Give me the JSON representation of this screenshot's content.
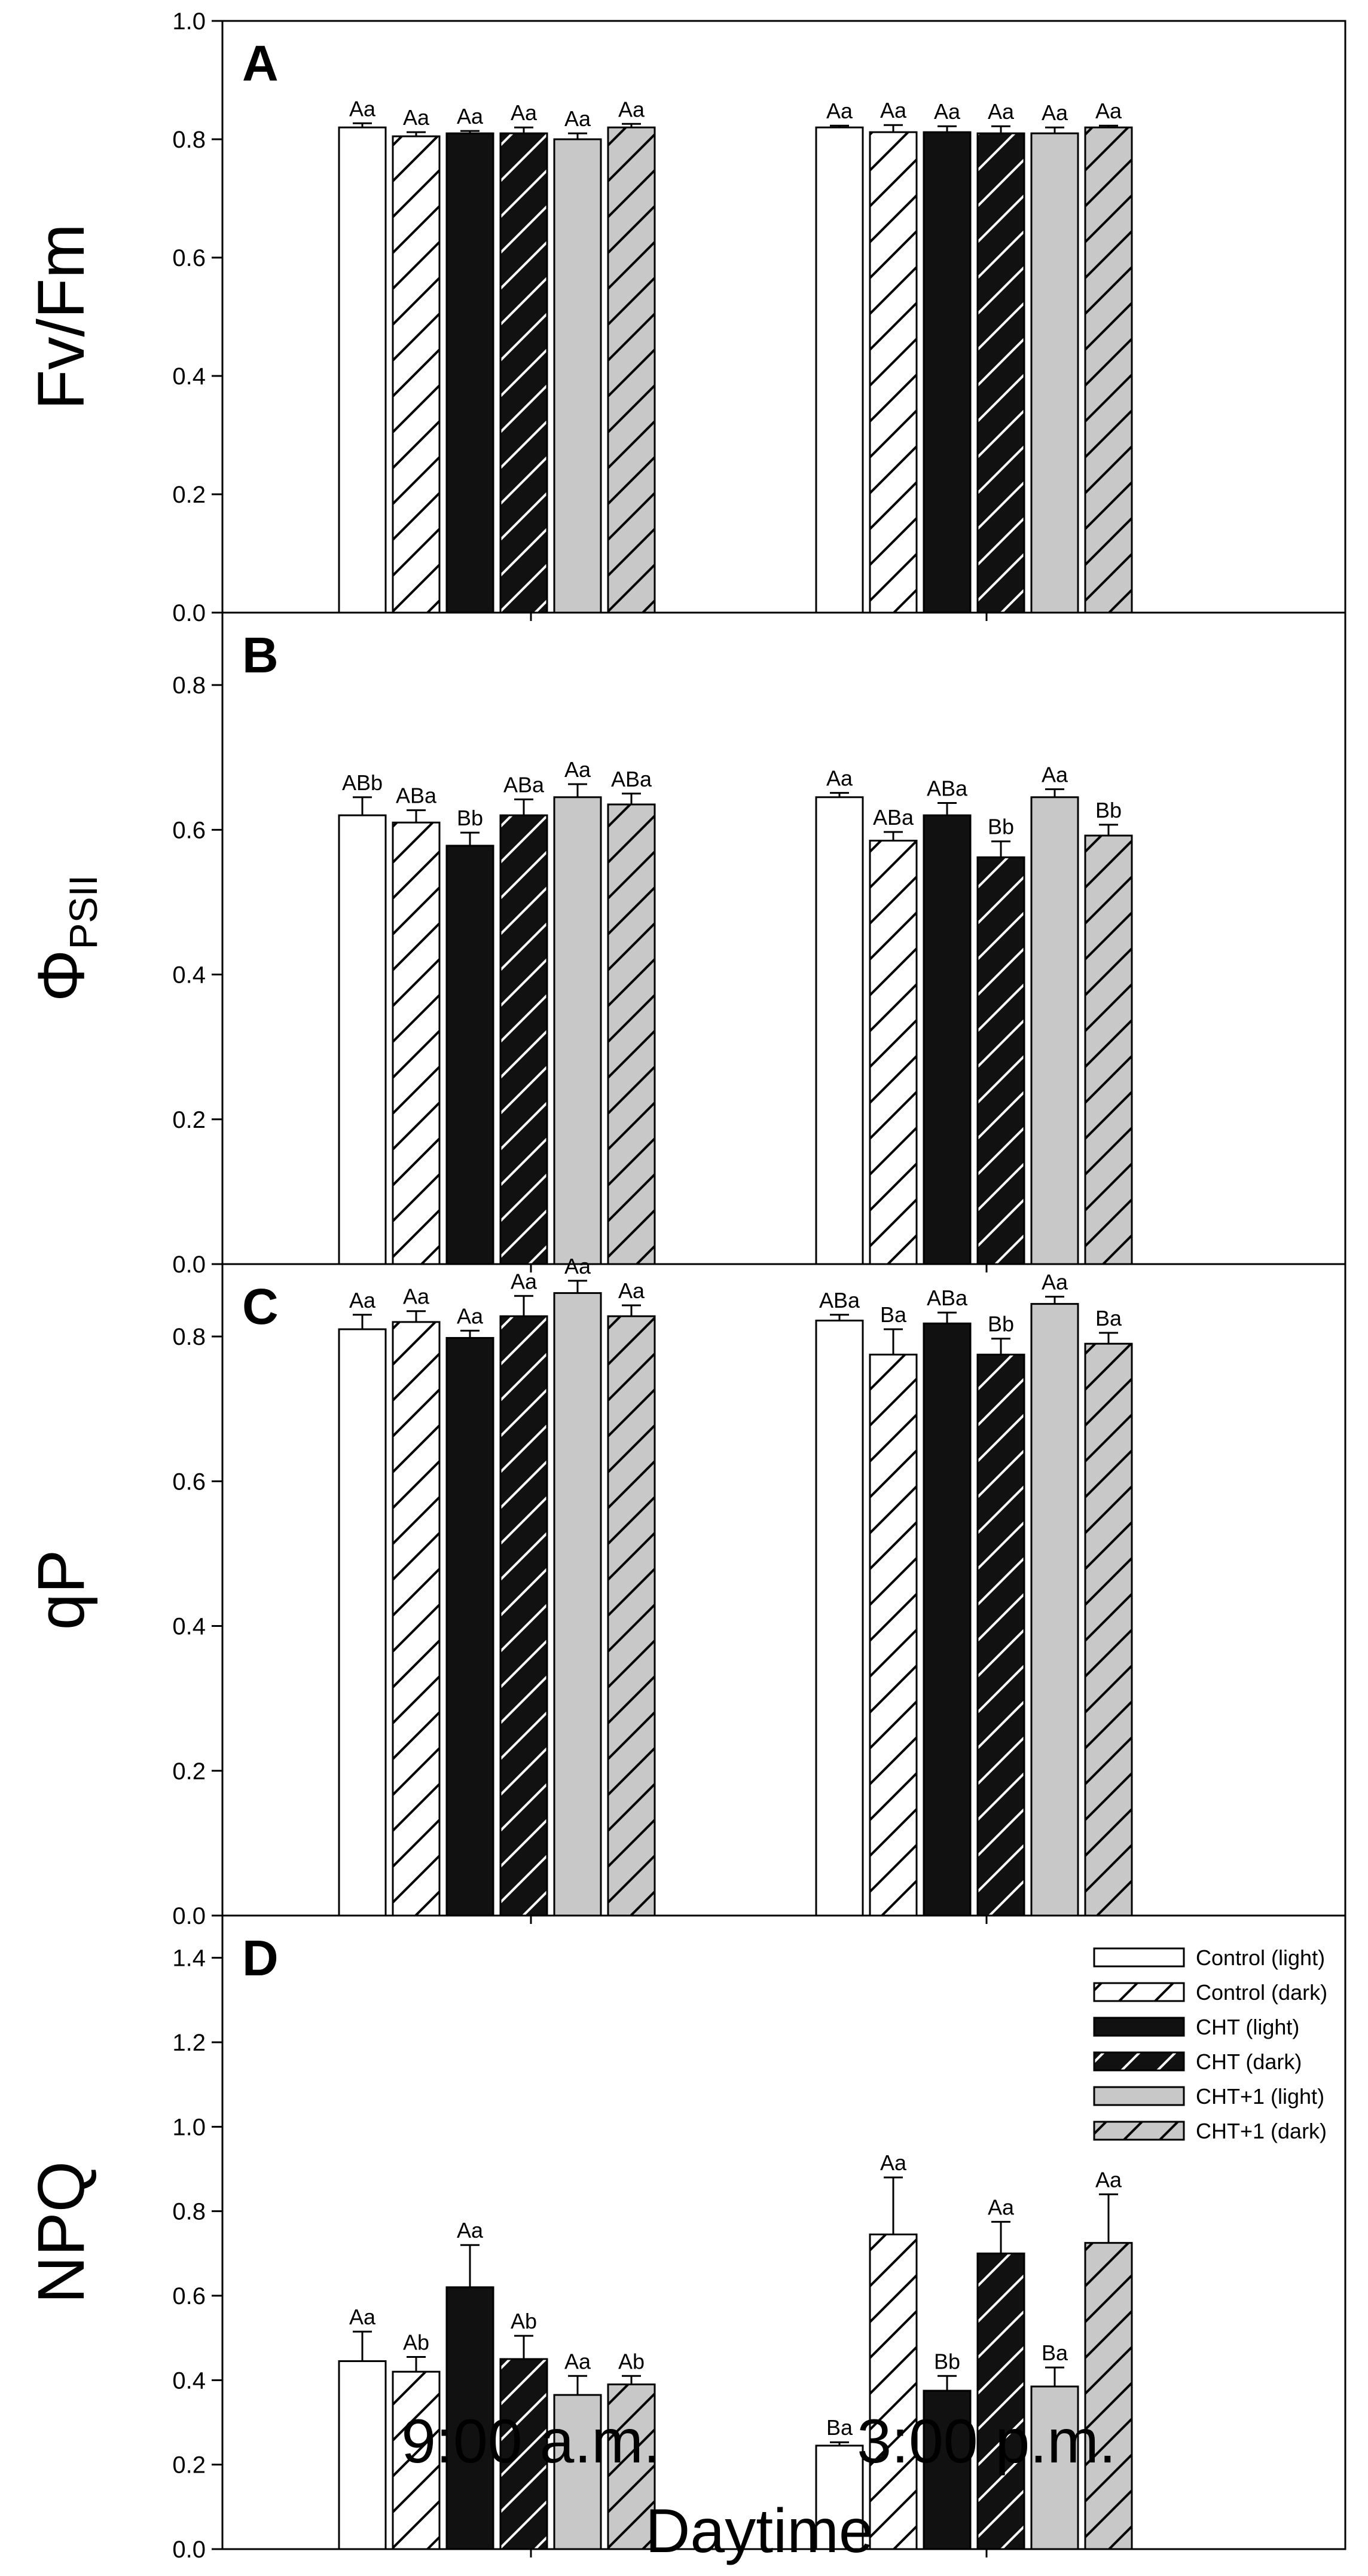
{
  "chart_data": [
    {
      "type": "bar",
      "panel_label": "A",
      "ylabel": "Fv/Fm",
      "ylim": [
        0,
        1.0
      ],
      "yticks": [
        "0.0",
        "0.2",
        "0.4",
        "0.6",
        "0.8",
        "1.0"
      ],
      "categories": [
        "9:00 a.m.",
        "3:00 p.m."
      ],
      "series": [
        {
          "name": "Control (light)",
          "values": [
            0.82,
            0.82
          ],
          "errors": [
            0.007,
            0.003
          ],
          "labels": [
            "Aa",
            "Aa"
          ]
        },
        {
          "name": "Control (dark)",
          "values": [
            0.805,
            0.812
          ],
          "errors": [
            0.007,
            0.012
          ],
          "labels": [
            "Aa",
            "Aa"
          ]
        },
        {
          "name": "CHT (light)",
          "values": [
            0.81,
            0.812
          ],
          "errors": [
            0.004,
            0.01
          ],
          "labels": [
            "Aa",
            "Aa"
          ]
        },
        {
          "name": "CHT (dark)",
          "values": [
            0.81,
            0.81
          ],
          "errors": [
            0.01,
            0.012
          ],
          "labels": [
            "Aa",
            "Aa"
          ]
        },
        {
          "name": "CHT+1 (light)",
          "values": [
            0.8,
            0.81
          ],
          "errors": [
            0.01,
            0.01
          ],
          "labels": [
            "Aa",
            "Aa"
          ]
        },
        {
          "name": "CHT+1 (dark)",
          "values": [
            0.82,
            0.82
          ],
          "errors": [
            0.006,
            0.003
          ],
          "labels": [
            "Aa",
            "Aa"
          ]
        }
      ]
    },
    {
      "type": "bar",
      "panel_label": "B",
      "ylabel": "Φ",
      "ylabel_sub": "PSII",
      "ylim": [
        0,
        0.9
      ],
      "yticks": [
        "0.0",
        "0.2",
        "0.4",
        "0.6",
        "0.8"
      ],
      "categories": [
        "9:00 a.m.",
        "3:00 p.m."
      ],
      "series": [
        {
          "name": "Control (light)",
          "values": [
            0.62,
            0.645
          ],
          "errors": [
            0.025,
            0.006
          ],
          "labels": [
            "ABb",
            "Aa"
          ]
        },
        {
          "name": "Control (dark)",
          "values": [
            0.61,
            0.585
          ],
          "errors": [
            0.017,
            0.012
          ],
          "labels": [
            "ABa",
            "ABa"
          ]
        },
        {
          "name": "CHT (light)",
          "values": [
            0.578,
            0.62
          ],
          "errors": [
            0.018,
            0.017
          ],
          "labels": [
            "Bb",
            "ABa"
          ]
        },
        {
          "name": "CHT (dark)",
          "values": [
            0.62,
            0.562
          ],
          "errors": [
            0.022,
            0.022
          ],
          "labels": [
            "ABa",
            "Bb"
          ]
        },
        {
          "name": "CHT+1 (light)",
          "values": [
            0.645,
            0.645
          ],
          "errors": [
            0.018,
            0.011
          ],
          "labels": [
            "Aa",
            "Aa"
          ]
        },
        {
          "name": "CHT+1 (dark)",
          "values": [
            0.635,
            0.592
          ],
          "errors": [
            0.015,
            0.015
          ],
          "labels": [
            "ABa",
            "Bb"
          ]
        }
      ]
    },
    {
      "type": "bar",
      "panel_label": "C",
      "ylabel": "qP",
      "ylim": [
        0,
        0.9
      ],
      "yticks": [
        "0.0",
        "0.2",
        "0.4",
        "0.6",
        "0.8"
      ],
      "categories": [
        "9:00 a.m.",
        "3:00 p.m."
      ],
      "series": [
        {
          "name": "Control (light)",
          "values": [
            0.81,
            0.822
          ],
          "errors": [
            0.02,
            0.008
          ],
          "labels": [
            "Aa",
            "ABa"
          ]
        },
        {
          "name": "Control (dark)",
          "values": [
            0.82,
            0.775
          ],
          "errors": [
            0.015,
            0.035
          ],
          "labels": [
            "Aa",
            "Ba"
          ]
        },
        {
          "name": "CHT (light)",
          "values": [
            0.798,
            0.818
          ],
          "errors": [
            0.01,
            0.015
          ],
          "labels": [
            "Aa",
            "ABa"
          ]
        },
        {
          "name": "CHT (dark)",
          "values": [
            0.828,
            0.775
          ],
          "errors": [
            0.028,
            0.022
          ],
          "labels": [
            "Aa",
            "Bb"
          ]
        },
        {
          "name": "CHT+1 (light)",
          "values": [
            0.86,
            0.845
          ],
          "errors": [
            0.017,
            0.01
          ],
          "labels": [
            "Aa",
            "Aa"
          ]
        },
        {
          "name": "CHT+1 (dark)",
          "values": [
            0.828,
            0.79
          ],
          "errors": [
            0.015,
            0.015
          ],
          "labels": [
            "Aa",
            "Ba"
          ]
        }
      ]
    },
    {
      "type": "bar",
      "panel_label": "D",
      "ylabel": "NPQ",
      "ylim": [
        0,
        1.5
      ],
      "yticks": [
        "0.0",
        "0.2",
        "0.4",
        "0.6",
        "0.8",
        "1.0",
        "1.2",
        "1.4"
      ],
      "categories": [
        "9:00 a.m.",
        "3:00 p.m."
      ],
      "series": [
        {
          "name": "Control (light)",
          "values": [
            0.445,
            0.245
          ],
          "errors": [
            0.07,
            0.008
          ],
          "labels": [
            "Aa",
            "Ba"
          ]
        },
        {
          "name": "Control (dark)",
          "values": [
            0.42,
            0.745
          ],
          "errors": [
            0.035,
            0.135
          ],
          "labels": [
            "Ab",
            "Aa"
          ]
        },
        {
          "name": "CHT (light)",
          "values": [
            0.62,
            0.375
          ],
          "errors": [
            0.1,
            0.035
          ],
          "labels": [
            "Aa",
            "Bb"
          ]
        },
        {
          "name": "CHT (dark)",
          "values": [
            0.45,
            0.7
          ],
          "errors": [
            0.055,
            0.075
          ],
          "labels": [
            "Ab",
            "Aa"
          ]
        },
        {
          "name": "CHT+1 (light)",
          "values": [
            0.365,
            0.385
          ],
          "errors": [
            0.045,
            0.045
          ],
          "labels": [
            "Aa",
            "Ba"
          ]
        },
        {
          "name": "CHT+1 (dark)",
          "values": [
            0.39,
            0.725
          ],
          "errors": [
            0.02,
            0.115
          ],
          "labels": [
            "Ab",
            "Aa"
          ]
        }
      ]
    }
  ],
  "legend": [
    {
      "label": "Control (light)",
      "style": "white"
    },
    {
      "label": "Control (dark)",
      "style": "white-hatch"
    },
    {
      "label": "CHT (light)",
      "style": "black"
    },
    {
      "label": "CHT (dark)",
      "style": "black-hatch"
    },
    {
      "label": "CHT+1 (light)",
      "style": "gray"
    },
    {
      "label": "CHT+1 (dark)",
      "style": "gray-hatch"
    }
  ],
  "xlabel": "Daytime",
  "colors": {
    "black": "#111111",
    "gray": "#c8c8c8",
    "white": "#ffffff"
  }
}
